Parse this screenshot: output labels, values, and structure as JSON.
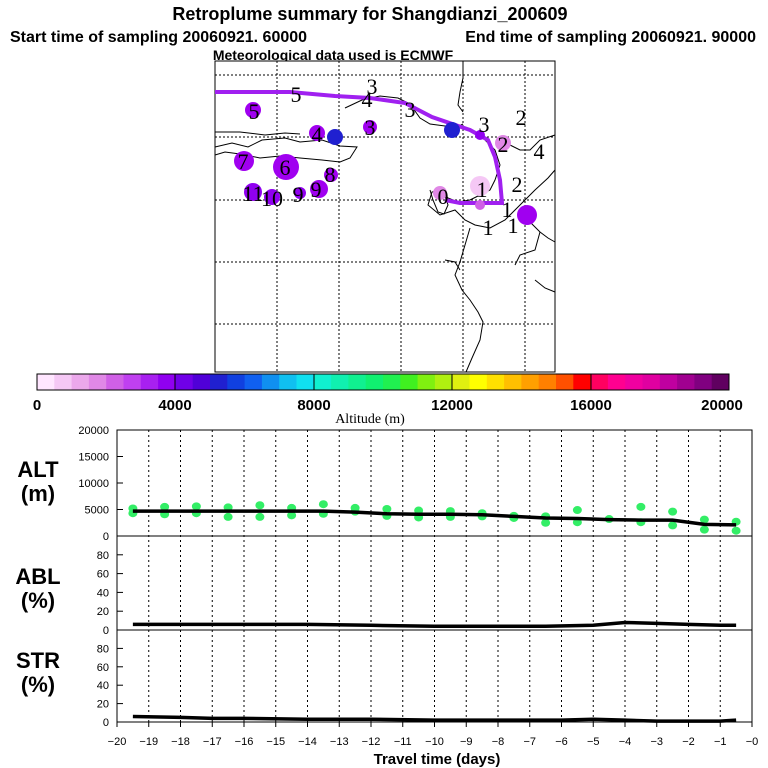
{
  "title": "Retroplume summary for Shangdianzi_200609",
  "start_text": "Start time of sampling 20060921. 60000",
  "end_text": "End time of sampling 20060921. 90000",
  "met_text": "Meteorological data used is ECMWF",
  "colorbar": {
    "label": "Altitude (m)",
    "ticks": [
      "0",
      "4000",
      "8000",
      "12000",
      "16000",
      "20000"
    ],
    "colors": [
      "#ffe6ff",
      "#f5c8f5",
      "#eba8eb",
      "#e088e6",
      "#d060e6",
      "#c040f0",
      "#a820f0",
      "#9000f0",
      "#7000e8",
      "#5000d8",
      "#2020d0",
      "#1040e0",
      "#1060f0",
      "#1090f0",
      "#10c0f0",
      "#10e0f0",
      "#10f0d0",
      "#10f0b0",
      "#10f090",
      "#10f070",
      "#20f050",
      "#40f020",
      "#80f010",
      "#b0f010",
      "#e0f010",
      "#ffff00",
      "#ffe000",
      "#ffc000",
      "#ffa000",
      "#ff8000",
      "#ff5000",
      "#ff0000",
      "#ff0060",
      "#ff0090",
      "#f000a0",
      "#e000a0",
      "#c000a0",
      "#a00090",
      "#800080",
      "#600060"
    ]
  },
  "map": {
    "plume_labels": [
      {
        "t": "5",
        "x": 296,
        "y": 95
      },
      {
        "t": "4",
        "x": 367,
        "y": 100
      },
      {
        "t": "3",
        "x": 372,
        "y": 87
      },
      {
        "t": "3",
        "x": 410,
        "y": 110
      },
      {
        "t": "3",
        "x": 484,
        "y": 125
      },
      {
        "t": "2",
        "x": 521,
        "y": 118
      },
      {
        "t": "4",
        "x": 539,
        "y": 152
      },
      {
        "t": "2",
        "x": 503,
        "y": 145
      },
      {
        "t": "2",
        "x": 517,
        "y": 185
      },
      {
        "t": "1",
        "x": 482,
        "y": 190
      },
      {
        "t": "1",
        "x": 507,
        "y": 210
      },
      {
        "t": "1",
        "x": 513,
        "y": 226
      },
      {
        "t": "1",
        "x": 488,
        "y": 228
      },
      {
        "t": "0",
        "x": 443,
        "y": 197
      },
      {
        "t": "5",
        "x": 254,
        "y": 112
      },
      {
        "t": "4",
        "x": 317,
        "y": 135
      },
      {
        "t": "3",
        "x": 370,
        "y": 128
      },
      {
        "t": "7",
        "x": 243,
        "y": 162
      },
      {
        "t": "6",
        "x": 285,
        "y": 168
      },
      {
        "t": "8",
        "x": 330,
        "y": 175
      },
      {
        "t": "9",
        "x": 316,
        "y": 190
      },
      {
        "t": "11",
        "x": 253,
        "y": 194
      },
      {
        "t": "10",
        "x": 272,
        "y": 199
      },
      {
        "t": "9",
        "x": 298,
        "y": 195
      }
    ],
    "dots": [
      {
        "x": 253,
        "y": 110,
        "r": 8,
        "c": "#a000f0"
      },
      {
        "x": 317,
        "y": 133,
        "r": 8,
        "c": "#a000f0"
      },
      {
        "x": 335,
        "y": 137,
        "r": 8,
        "c": "#2020d0"
      },
      {
        "x": 370,
        "y": 127,
        "r": 7,
        "c": "#a000f0"
      },
      {
        "x": 452,
        "y": 130,
        "r": 8,
        "c": "#2020d0"
      },
      {
        "x": 480,
        "y": 135,
        "r": 5,
        "c": "#9000f0"
      },
      {
        "x": 503,
        "y": 143,
        "r": 8,
        "c": "#e088e6"
      },
      {
        "x": 244,
        "y": 161,
        "r": 10,
        "c": "#a000f0"
      },
      {
        "x": 286,
        "y": 167,
        "r": 13,
        "c": "#a000f0"
      },
      {
        "x": 331,
        "y": 175,
        "r": 7,
        "c": "#a000f0"
      },
      {
        "x": 319,
        "y": 189,
        "r": 9,
        "c": "#a000f0"
      },
      {
        "x": 253,
        "y": 192,
        "r": 9,
        "c": "#9000f0"
      },
      {
        "x": 272,
        "y": 197,
        "r": 8,
        "c": "#9000f0"
      },
      {
        "x": 300,
        "y": 193,
        "r": 6,
        "c": "#9000f0"
      },
      {
        "x": 480,
        "y": 186,
        "r": 10,
        "c": "#f5c8f5"
      },
      {
        "x": 527,
        "y": 215,
        "r": 10,
        "c": "#a000f0"
      },
      {
        "x": 440,
        "y": 193,
        "r": 7,
        "c": "#e088e6"
      },
      {
        "x": 480,
        "y": 205,
        "r": 5,
        "c": "#d060e6"
      }
    ]
  },
  "chart_data": {
    "type": "line",
    "xlabel": "Travel time (days)",
    "x_ticks": [
      "−20",
      "−19",
      "−18",
      "−17",
      "−16",
      "−15",
      "−14",
      "−13",
      "−12",
      "−11",
      "−10",
      "−9",
      "−8",
      "−7",
      "−6",
      "−5",
      "−4",
      "−3",
      "−2",
      "−1",
      "−0"
    ],
    "xlim": [
      -20,
      0
    ],
    "panels": [
      {
        "name": "ALT",
        "unit": "(m)",
        "ylim": [
          0,
          20000
        ],
        "y_ticks": [
          "20000",
          "15000",
          "10000",
          "5000",
          "0"
        ],
        "x": [
          -19.5,
          -18.5,
          -17.5,
          -16.5,
          -15.5,
          -14.5,
          -13.5,
          -12.5,
          -11.5,
          -10.5,
          -9.5,
          -8.5,
          -7.5,
          -6.5,
          -5.5,
          -4.5,
          -3.5,
          -2.5,
          -1.5,
          -0.5
        ],
        "values": [
          4700,
          4700,
          4700,
          4700,
          4700,
          4700,
          4700,
          4500,
          4200,
          4100,
          4100,
          4000,
          3700,
          3400,
          3300,
          3100,
          3000,
          3000,
          2200,
          2100
        ],
        "scatter": [
          [
            -19.5,
            5200
          ],
          [
            -19.5,
            4300
          ],
          [
            -18.5,
            5500
          ],
          [
            -18.5,
            4100
          ],
          [
            -17.5,
            5600
          ],
          [
            -17.5,
            4300
          ],
          [
            -16.5,
            5400
          ],
          [
            -16.5,
            3600
          ],
          [
            -15.5,
            5800
          ],
          [
            -15.5,
            3600
          ],
          [
            -14.5,
            5300
          ],
          [
            -14.5,
            3900
          ],
          [
            -13.5,
            6000
          ],
          [
            -13.5,
            4200
          ],
          [
            -12.5,
            5300
          ],
          [
            -12.5,
            4600
          ],
          [
            -11.5,
            5100
          ],
          [
            -11.5,
            3800
          ],
          [
            -10.5,
            4800
          ],
          [
            -10.5,
            3500
          ],
          [
            -9.5,
            4700
          ],
          [
            -9.5,
            3600
          ],
          [
            -8.5,
            4300
          ],
          [
            -8.5,
            3700
          ],
          [
            -7.5,
            3800
          ],
          [
            -7.5,
            3400
          ],
          [
            -6.5,
            3700
          ],
          [
            -6.5,
            2500
          ],
          [
            -5.5,
            4900
          ],
          [
            -5.5,
            2600
          ],
          [
            -4.5,
            3200
          ],
          [
            -3.5,
            5500
          ],
          [
            -3.5,
            2600
          ],
          [
            -2.5,
            4600
          ],
          [
            -2.5,
            2000
          ],
          [
            -1.5,
            3100
          ],
          [
            -1.5,
            1200
          ],
          [
            -0.5,
            2700
          ],
          [
            -0.5,
            1000
          ]
        ]
      },
      {
        "name": "ABL",
        "unit": "(%)",
        "ylim": [
          0,
          100
        ],
        "y_ticks": [
          "80",
          "60",
          "40",
          "20",
          "0"
        ],
        "x": [
          -19.5,
          -18,
          -16,
          -14,
          -12,
          -10,
          -8,
          -6.5,
          -5,
          -4,
          -3,
          -2,
          -1,
          -0.5
        ],
        "values": [
          6,
          6,
          6,
          6,
          5,
          4,
          4,
          4,
          5,
          8,
          7,
          6,
          5,
          5
        ]
      },
      {
        "name": "STR",
        "unit": "(%)",
        "ylim": [
          0,
          100
        ],
        "y_ticks": [
          "80",
          "60",
          "40",
          "20",
          "0"
        ],
        "x": [
          -19.5,
          -18,
          -17,
          -16,
          -14,
          -12,
          -10,
          -8,
          -6,
          -5,
          -4,
          -3,
          -2,
          -1,
          -0.5
        ],
        "values": [
          6,
          5,
          4,
          4,
          3,
          3,
          2,
          2,
          2,
          3,
          2,
          1,
          1,
          1,
          2
        ]
      }
    ]
  }
}
